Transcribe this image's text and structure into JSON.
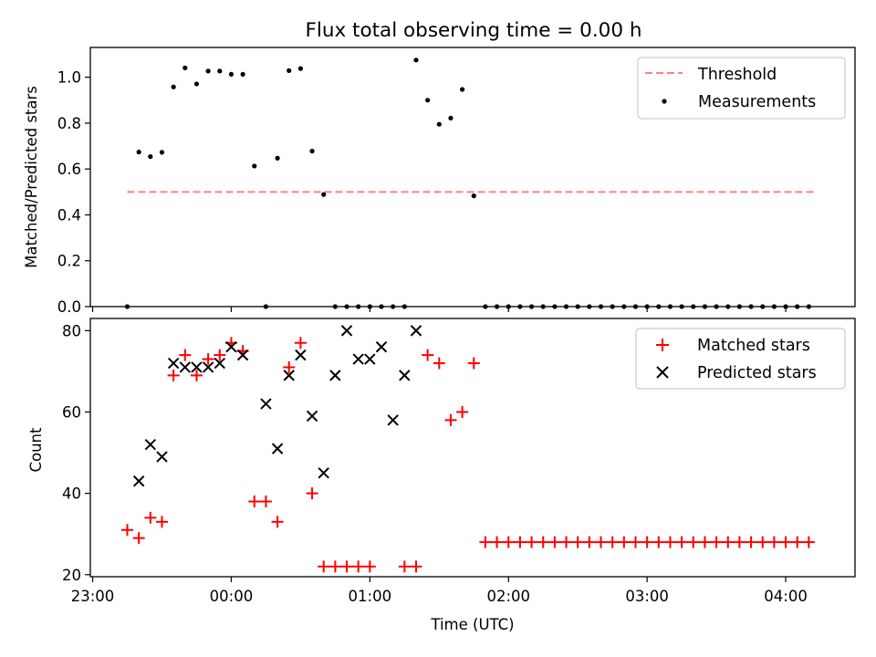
{
  "chart_data": [
    {
      "type": "scatter",
      "title": "Flux total observing time = 0.00 h",
      "ylabel": "Matched/Predicted stars",
      "xlabel": "",
      "ylim": [
        0,
        1.13
      ],
      "xlim_minutes": [
        -61,
        270
      ],
      "yticks": [
        {
          "v": 0,
          "label": "0.0"
        },
        {
          "v": 0.2,
          "label": "0.2"
        },
        {
          "v": 0.4,
          "label": "0.4"
        },
        {
          "v": 0.6,
          "label": "0.6"
        },
        {
          "v": 0.8,
          "label": "0.8"
        },
        {
          "v": 1.0,
          "label": "1.0"
        }
      ],
      "legend": {
        "position": "top-right",
        "threshold_label": "Threshold",
        "measurements_label": "Measurements"
      },
      "threshold": {
        "value": 0.5,
        "x_start": -45,
        "x_end": 253,
        "color": "#ff8080"
      },
      "measurements": {
        "color": "#000000",
        "x": [
          -45,
          -40,
          -35,
          -30,
          -25,
          -20,
          -15,
          -10,
          -5,
          0,
          5,
          10,
          15,
          20,
          25,
          30,
          35,
          40,
          45,
          50,
          55,
          60,
          65,
          70,
          75,
          80,
          85,
          90,
          95,
          100,
          105,
          110,
          115,
          120,
          125,
          130,
          135,
          140,
          145,
          150,
          155,
          160,
          165,
          170,
          175,
          180,
          185,
          190,
          195,
          200,
          205,
          210,
          215,
          220,
          225,
          230,
          235,
          240,
          245,
          250
        ],
        "y": [
          0,
          0.674,
          0.654,
          0.673,
          0.958,
          1.041,
          0.971,
          1.027,
          1.027,
          1.013,
          1.013,
          0.613,
          0,
          0.647,
          1.029,
          1.038,
          0.678,
          0.489,
          0,
          0,
          0,
          0,
          0,
          0,
          0,
          1.075,
          0.9,
          0.795,
          0.822,
          0.947,
          0.483,
          0,
          0,
          0,
          0,
          0,
          0,
          0,
          0,
          0,
          0,
          0,
          0,
          0,
          0,
          0,
          0,
          0,
          0,
          0,
          0,
          0,
          0,
          0,
          0,
          0,
          0,
          0,
          0,
          0
        ]
      }
    },
    {
      "type": "scatter",
      "title": "",
      "ylabel": "Count",
      "xlabel": "Time (UTC)",
      "ylim": [
        19.5,
        83
      ],
      "xlim_minutes": [
        -61,
        270
      ],
      "yticks": [
        {
          "v": 20,
          "label": "20"
        },
        {
          "v": 40,
          "label": "40"
        },
        {
          "v": 60,
          "label": "60"
        },
        {
          "v": 80,
          "label": "80"
        }
      ],
      "xticks": [
        {
          "v": -60,
          "label": "23:00"
        },
        {
          "v": 0,
          "label": "00:00"
        },
        {
          "v": 60,
          "label": "01:00"
        },
        {
          "v": 120,
          "label": "02:00"
        },
        {
          "v": 180,
          "label": "03:00"
        },
        {
          "v": 240,
          "label": "04:00"
        }
      ],
      "legend": {
        "position": "top-right",
        "matched_label": "Matched stars",
        "predicted_label": "Predicted stars"
      },
      "series": [
        {
          "name": "Matched stars",
          "marker": "plus",
          "color": "#ff0000",
          "x": [
            -45,
            -40,
            -35,
            -30,
            -25,
            -20,
            -15,
            -10,
            -5,
            0,
            5,
            10,
            15,
            20,
            25,
            30,
            35,
            40,
            45,
            50,
            55,
            60,
            75,
            80,
            85,
            90,
            95,
            100,
            105,
            110,
            115,
            120,
            125,
            130,
            135,
            140,
            145,
            150,
            155,
            160,
            165,
            170,
            175,
            180,
            185,
            190,
            195,
            200,
            205,
            210,
            215,
            220,
            225,
            230,
            235,
            240,
            245,
            250
          ],
          "y": [
            31,
            29,
            34,
            33,
            69,
            74,
            69,
            73,
            74,
            77,
            75,
            38,
            38,
            33,
            71,
            77,
            40,
            22,
            22,
            22,
            22,
            22,
            22,
            22,
            74,
            72,
            58,
            60,
            72,
            28,
            28,
            28,
            28,
            28,
            28,
            28,
            28,
            28,
            28,
            28,
            28,
            28,
            28,
            28,
            28,
            28,
            28,
            28,
            28,
            28,
            28,
            28,
            28,
            28,
            28,
            28,
            28,
            28
          ]
        },
        {
          "name": "Predicted stars",
          "marker": "x",
          "color": "#000000",
          "x": [
            -40,
            -35,
            -30,
            -25,
            -20,
            -15,
            -10,
            -5,
            0,
            5,
            15,
            20,
            25,
            30,
            35,
            40,
            45,
            50,
            55,
            60,
            65,
            70,
            75,
            80
          ],
          "y": [
            43,
            52,
            49,
            72,
            71,
            71,
            71,
            72,
            76,
            74,
            62,
            51,
            69,
            74,
            59,
            45,
            69,
            80,
            73,
            73,
            76,
            58,
            69,
            80
          ]
        }
      ]
    }
  ]
}
